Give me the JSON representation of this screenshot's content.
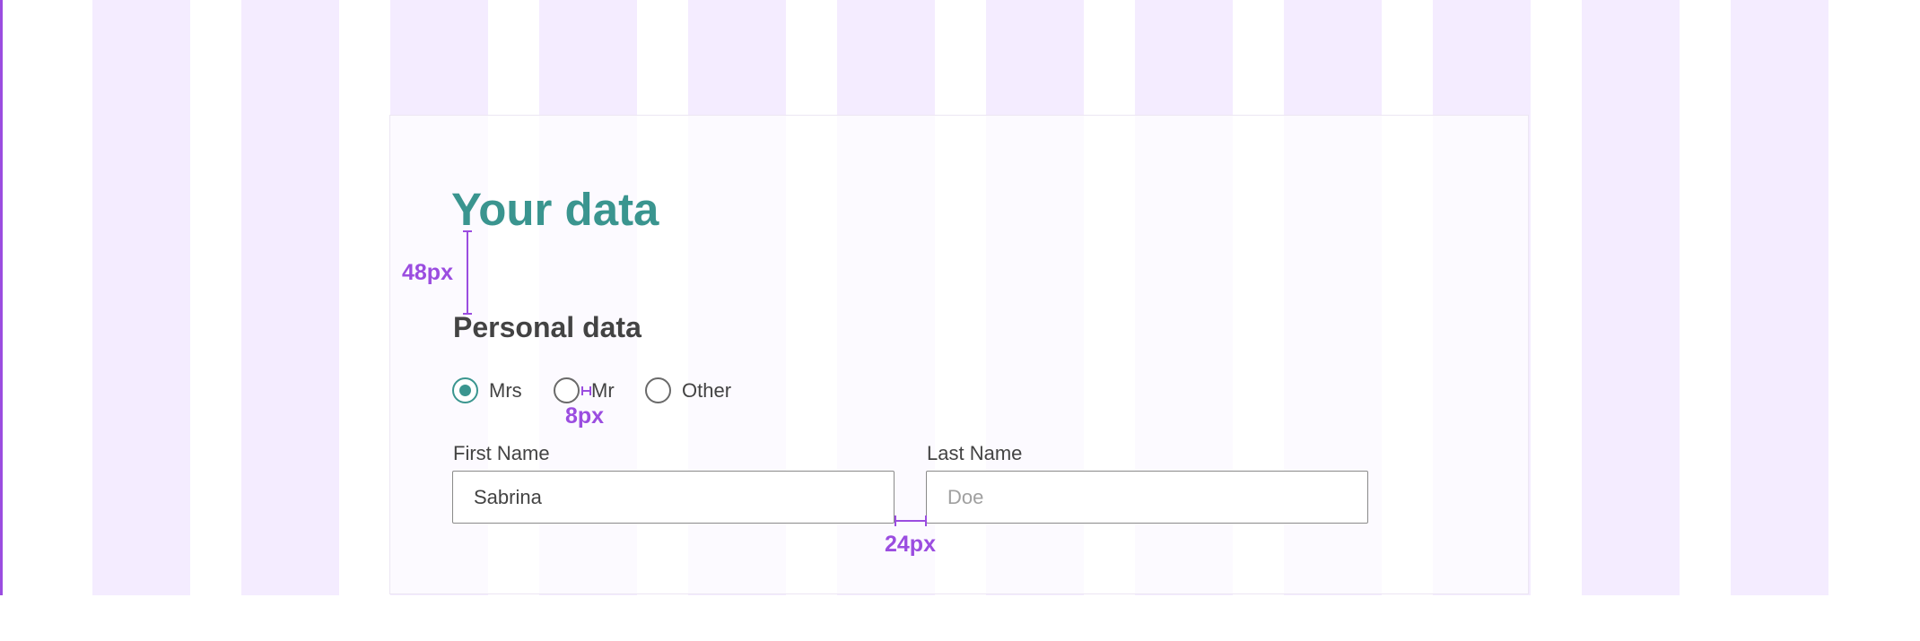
{
  "form": {
    "title": "Your data",
    "section_title": "Personal data",
    "salutation": {
      "options": [
        {
          "label": "Mrs",
          "selected": true
        },
        {
          "label": "Mr",
          "selected": false
        },
        {
          "label": "Other",
          "selected": false
        }
      ]
    },
    "first_name": {
      "label": "First Name",
      "value": "Sabrina",
      "placeholder": ""
    },
    "last_name": {
      "label": "Last Name",
      "value": "",
      "placeholder": "Doe"
    }
  },
  "annotations": {
    "title_spacing": "48px",
    "radio_label_gap": "8px",
    "field_gap": "24px"
  },
  "colors": {
    "accent": "#3a958f",
    "annotation": "#9b4de0",
    "grid_column": "#f4ecff",
    "text": "#434343"
  }
}
